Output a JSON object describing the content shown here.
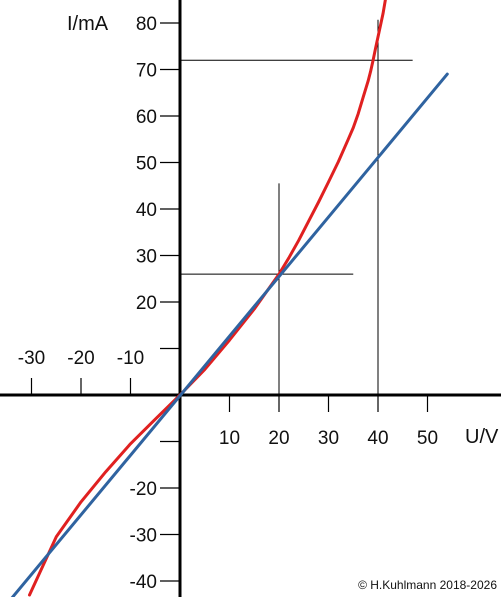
{
  "chart_data": {
    "type": "line",
    "xlabel": "U/V",
    "ylabel": "I/mA",
    "xlim": [
      -36,
      64
    ],
    "ylim": [
      -43,
      80.5
    ],
    "x_ticks": [
      -30,
      -20,
      -10,
      10,
      20,
      30,
      40,
      50
    ],
    "x_tick_labels": [
      "-30",
      "-20",
      "-10",
      "10",
      "20",
      "30",
      "40",
      "50"
    ],
    "y_ticks": [
      -40,
      -30,
      -20,
      -10,
      10,
      20,
      30,
      40,
      50,
      60,
      70,
      80
    ],
    "y_tick_labels": [
      "-40",
      "-30",
      "-20",
      "",
      "",
      "20",
      "30",
      "40",
      "50",
      "60",
      "70",
      "80"
    ],
    "series": [
      {
        "color": "#e02020",
        "x": [
          -30.4,
          -25,
          -20,
          -15,
          -10,
          -5,
          0,
          5,
          10,
          15,
          20,
          22,
          24,
          26,
          28,
          30,
          32,
          34,
          35,
          36,
          37,
          38,
          38.5,
          39,
          39.5,
          40,
          40.5,
          41,
          41.5,
          41.6
        ],
        "y": [
          -43,
          -30.5,
          -23,
          -16.5,
          -10.5,
          -5.2,
          0,
          5.5,
          11.8,
          18.5,
          26,
          29.5,
          33.3,
          37.4,
          41.5,
          45.8,
          50.2,
          55,
          57.5,
          60.5,
          64,
          67.5,
          69.6,
          72,
          74.5,
          77,
          79.5,
          82,
          85,
          86
        ]
      },
      {
        "color": "#2f63a0",
        "x": [
          -34,
          54
        ],
        "y": [
          -43.7,
          69
        ]
      }
    ],
    "reference_lines": [
      {
        "type": "vertical",
        "x": 20,
        "y_from": 0,
        "y_to": 45.5
      },
      {
        "type": "horizontal",
        "y": 26,
        "x_from": 0,
        "x_to": 35
      },
      {
        "type": "vertical",
        "x": 40,
        "y_from": 0,
        "y_to": 80.7
      },
      {
        "type": "horizontal",
        "y": 72,
        "x_from": 0,
        "x_to": 47
      }
    ],
    "grid": false,
    "legend": "none"
  },
  "copyright": "© H.Kuhlmann 2018-2026"
}
